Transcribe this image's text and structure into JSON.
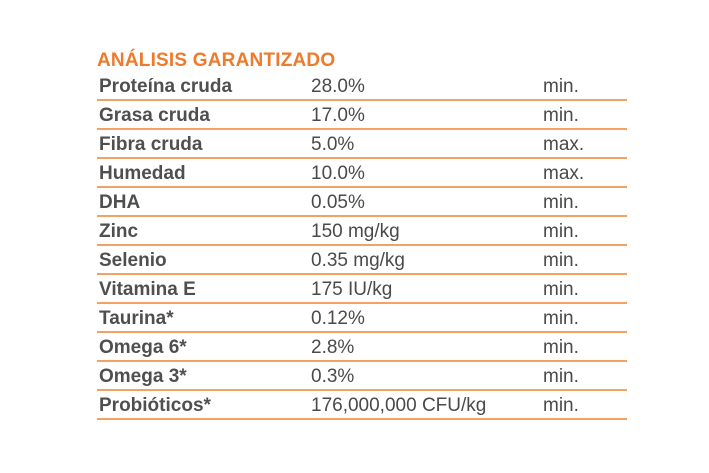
{
  "section_title": "ANÁLISIS GARANTIZADO",
  "accent_color": "#ee7a2b",
  "divider_color": "#f2a262",
  "rows": [
    {
      "nutrient": "Proteína cruda",
      "value": "28.0%",
      "qualifier": "min."
    },
    {
      "nutrient": "Grasa cruda",
      "value": "17.0%",
      "qualifier": "min."
    },
    {
      "nutrient": "Fibra cruda",
      "value": "5.0%",
      "qualifier": "max."
    },
    {
      "nutrient": "Humedad",
      "value": "10.0%",
      "qualifier": "max."
    },
    {
      "nutrient": "DHA",
      "value": "0.05%",
      "qualifier": "min."
    },
    {
      "nutrient": "Zinc",
      "value": "150 mg/kg",
      "qualifier": "min."
    },
    {
      "nutrient": "Selenio",
      "value": "0.35 mg/kg",
      "qualifier": "min."
    },
    {
      "nutrient": "Vitamina E",
      "value": "175 IU/kg",
      "qualifier": "min."
    },
    {
      "nutrient": "Taurina*",
      "value": "0.12%",
      "qualifier": "min."
    },
    {
      "nutrient": "Omega 6*",
      "value": "2.8%",
      "qualifier": "min."
    },
    {
      "nutrient": "Omega 3*",
      "value": "0.3%",
      "qualifier": "min."
    },
    {
      "nutrient": "Probióticos*",
      "value": "176,000,000 CFU/kg",
      "qualifier": "min."
    }
  ]
}
